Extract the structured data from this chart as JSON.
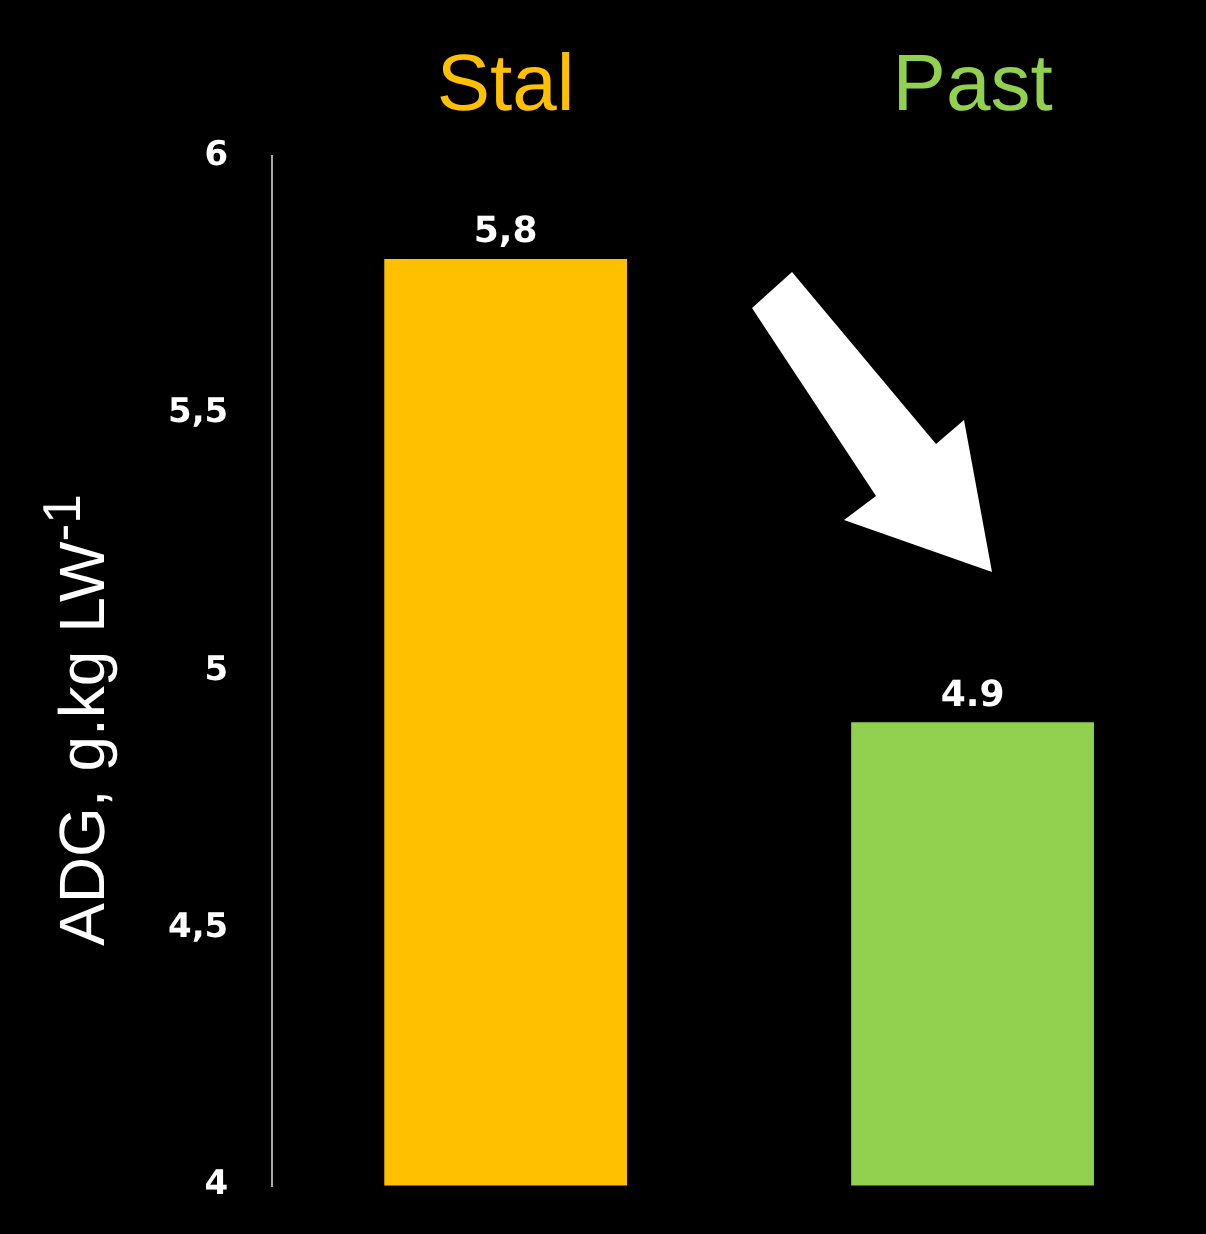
{
  "chart_data": {
    "type": "bar",
    "ylabel": "ADG, g.kg LW$^{-1}$",
    "categories": [
      "Stal",
      "Past"
    ],
    "values": [
      5.8,
      4.9
    ],
    "colors": [
      "#ffc000",
      "#92d050"
    ],
    "value_labels": [
      "5,8",
      "4.9"
    ],
    "ylim": [
      4,
      6
    ],
    "yticks": [
      {
        "value": 4,
        "label": "4"
      },
      {
        "value": 4.5,
        "label": "4,5"
      },
      5,
      {
        "value": 5.5,
        "label": "5,5"
      },
      6
    ],
    "grid": false,
    "legend": false
  }
}
